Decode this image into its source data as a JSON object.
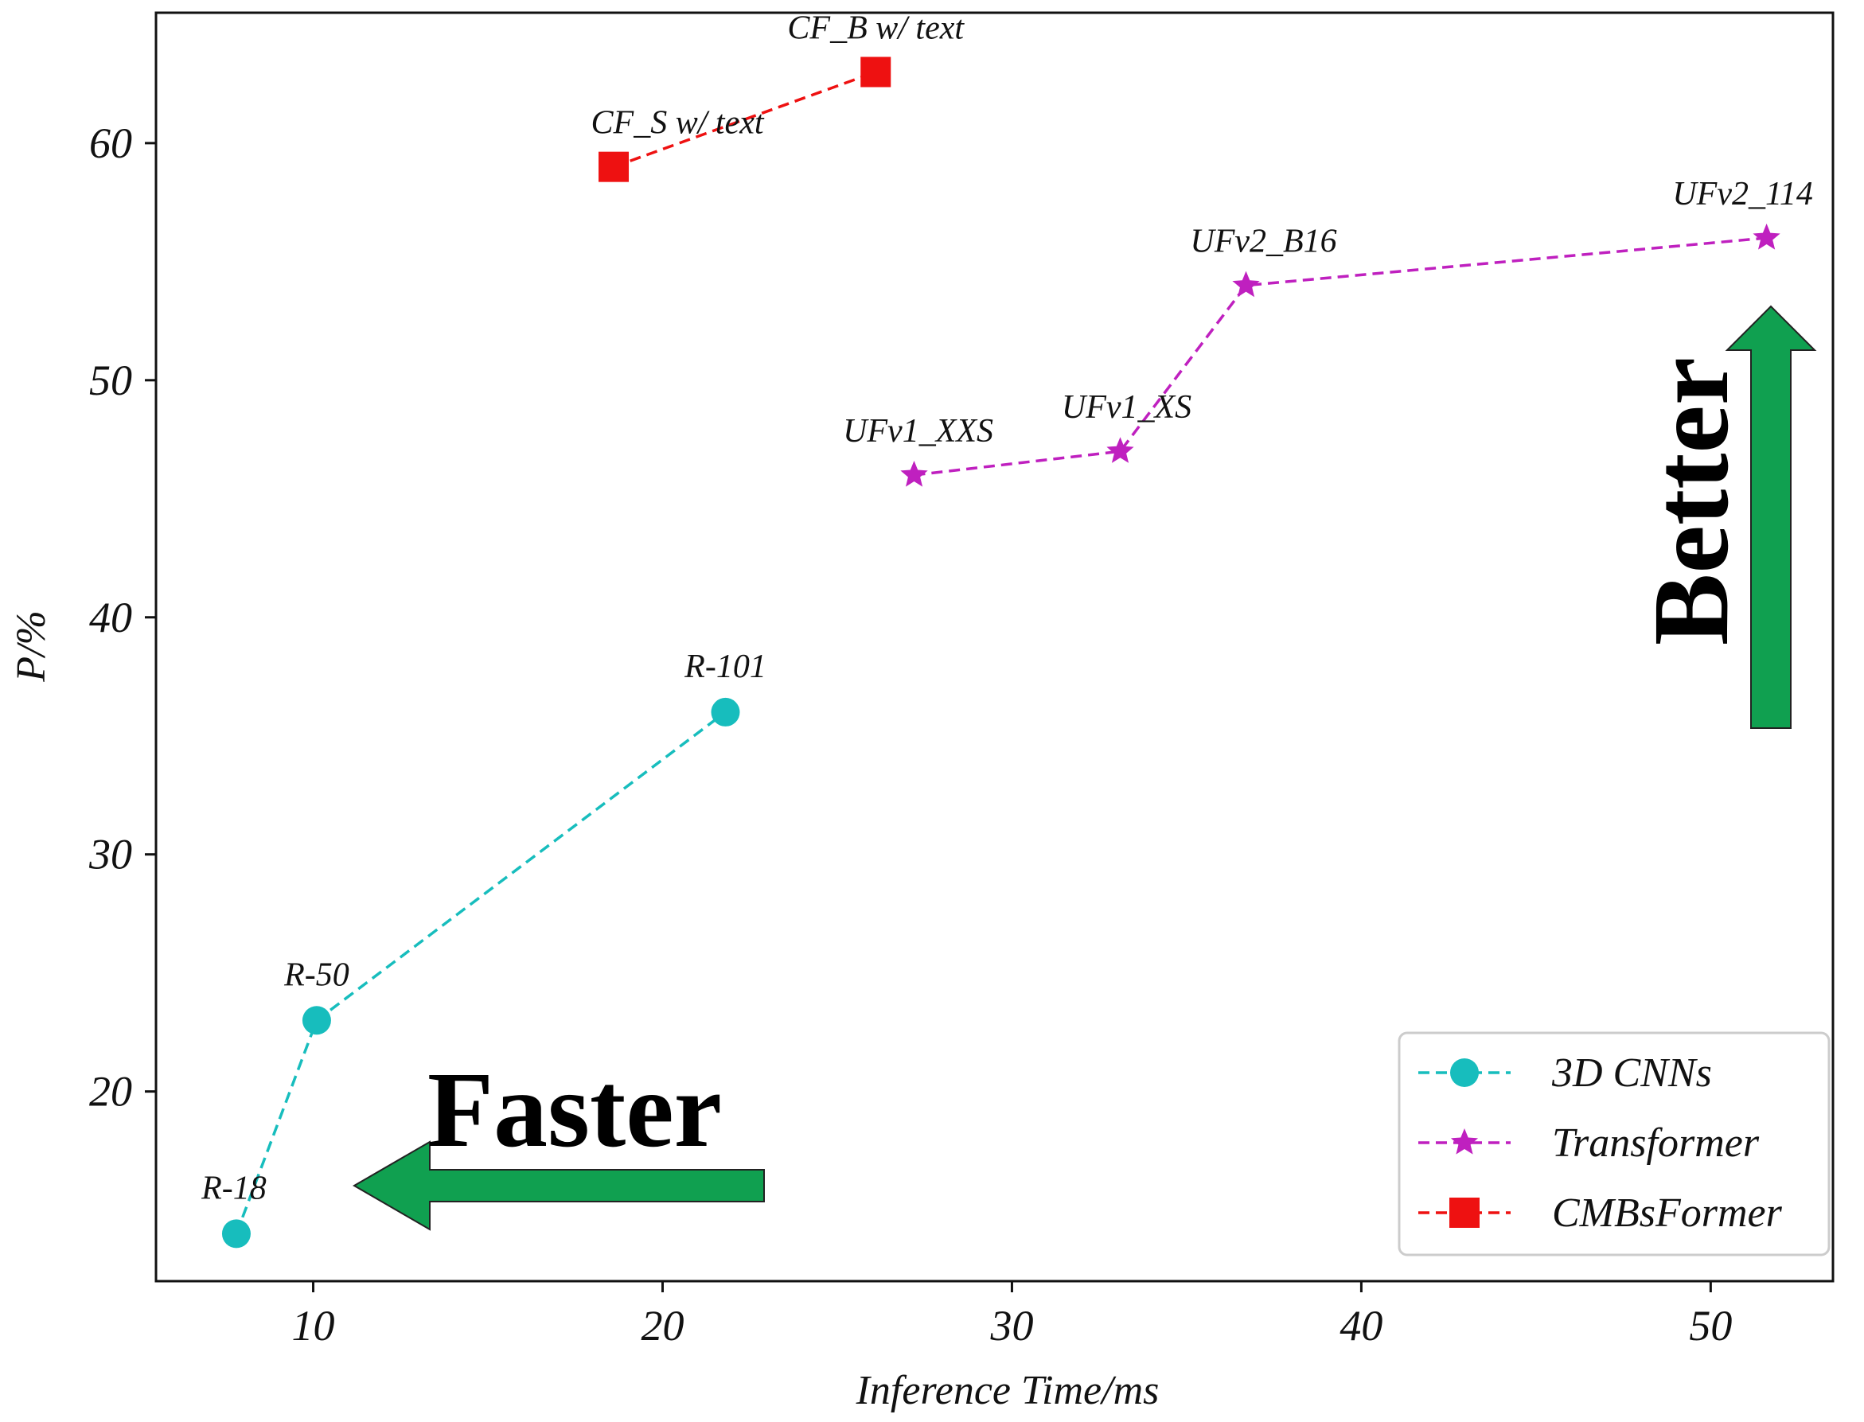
{
  "chart_data": {
    "type": "line",
    "title": "",
    "xlabel": "Inference Time/ms",
    "ylabel": "P/%",
    "xlim": [
      5.5,
      53.5
    ],
    "ylim": [
      12,
      65.5
    ],
    "xticks": [
      10,
      20,
      30,
      40,
      50
    ],
    "yticks": [
      20,
      30,
      40,
      50,
      60
    ],
    "grid": false,
    "legend_position": "bottom-right",
    "series": [
      {
        "name": "3D CNNs",
        "color": "#17bdbd",
        "marker": "circle",
        "points": [
          {
            "x": 7.8,
            "y": 14,
            "label": "R-18"
          },
          {
            "x": 10.1,
            "y": 23,
            "label": "R-50"
          },
          {
            "x": 21.8,
            "y": 36,
            "label": "R-101"
          }
        ]
      },
      {
        "name": "Transformer",
        "color": "#bf20bf",
        "marker": "star",
        "points": [
          {
            "x": 27.2,
            "y": 46,
            "label": "UFv1_XXS"
          },
          {
            "x": 33.1,
            "y": 47,
            "label": "UFv1_XS"
          },
          {
            "x": 36.7,
            "y": 54,
            "label": "UFv2_B16"
          },
          {
            "x": 51.6,
            "y": 56,
            "label": "UFv2_114"
          }
        ]
      },
      {
        "name": "CMBsFormer",
        "color": "#ee1111",
        "marker": "square",
        "points": [
          {
            "x": 18.6,
            "y": 59,
            "label": "CF_S w/ text"
          },
          {
            "x": 26.1,
            "y": 63,
            "label": "CF_B w/ text"
          }
        ]
      }
    ],
    "annotations": [
      {
        "text": "Faster",
        "direction": "left",
        "color": "#10a050"
      },
      {
        "text": "Better",
        "direction": "up",
        "color": "#10a050"
      }
    ]
  }
}
